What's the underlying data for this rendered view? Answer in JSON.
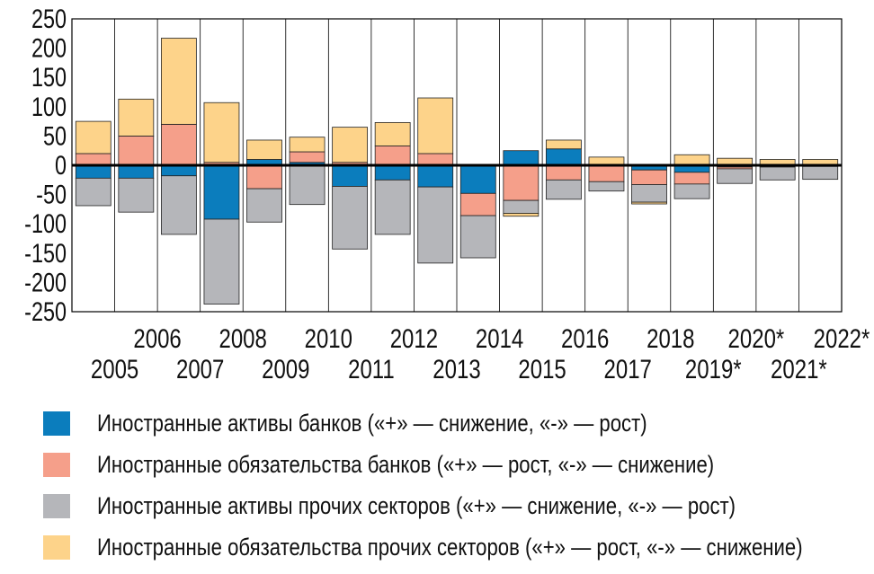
{
  "chart_data": {
    "type": "bar",
    "stacked": true,
    "categories": [
      "2005",
      "2006",
      "2007",
      "2008",
      "2009",
      "2010",
      "2011",
      "2012",
      "2013",
      "2014",
      "2015",
      "2016",
      "2017",
      "2018",
      "2019*",
      "2020*",
      "2021*",
      "2022*"
    ],
    "ylim": [
      -250,
      250
    ],
    "yticks": [
      -250,
      -200,
      -150,
      -100,
      -50,
      0,
      50,
      100,
      150,
      200,
      250
    ],
    "ytick_labels": [
      "-250",
      "-200",
      "-150",
      "-100",
      "-50",
      "0",
      "50",
      "100",
      "150",
      "200",
      "250"
    ],
    "series": [
      {
        "name": "Иностранные активы банков («+» — снижение, «-» — рост)",
        "color": "#0b7dbd",
        "values": [
          -22,
          -22,
          -18,
          -92,
          10,
          5,
          -36,
          -25,
          -37,
          -48,
          25,
          28,
          0,
          -8,
          -12,
          -3,
          -2,
          -1
        ]
      },
      {
        "name": "Иностранные обязательства банков («+» — рост, «-» — снижение)",
        "color": "#f59f8a",
        "values": [
          20,
          50,
          70,
          5,
          -40,
          18,
          5,
          33,
          20,
          -38,
          -60,
          -25,
          -28,
          -25,
          -20,
          -3,
          -1,
          -1
        ]
      },
      {
        "name": "Иностранные активы прочих секторов («+» — снижение, «-» — рост)",
        "color": "#b5b6ba",
        "values": [
          -47,
          -58,
          -100,
          -145,
          -57,
          -67,
          -107,
          -93,
          -130,
          -72,
          -22,
          -33,
          -16,
          -30,
          -25,
          -25,
          -22,
          -22
        ]
      },
      {
        "name": "Иностранные обязательства прочих секторов («+» — рост, «-» — снижение)",
        "color": "#fdd38a",
        "values": [
          55,
          63,
          147,
          102,
          33,
          25,
          60,
          40,
          95,
          0,
          -5,
          15,
          14,
          -3,
          18,
          12,
          10,
          10
        ]
      }
    ]
  }
}
